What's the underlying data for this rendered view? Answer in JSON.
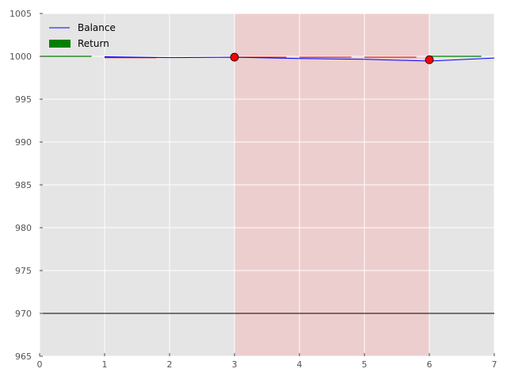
{
  "chart_data": {
    "type": "line",
    "title": "",
    "xlabel": "",
    "ylabel": "",
    "xlim": [
      0,
      7
    ],
    "ylim": [
      965,
      1005
    ],
    "grid": true,
    "legend_position": "top-left",
    "x_ticks": [
      "0",
      "1",
      "2",
      "3",
      "4",
      "5",
      "6",
      "7"
    ],
    "y_ticks": [
      "965",
      "970",
      "975",
      "980",
      "985",
      "990",
      "995",
      "1000",
      "1005"
    ],
    "legend": [
      {
        "label": "Balance",
        "kind": "line",
        "color": "#0000ff"
      },
      {
        "label": "Return",
        "kind": "patch",
        "color": "#008000"
      }
    ],
    "series": [
      {
        "name": "Balance",
        "color": "#0000ff",
        "x": [
          1,
          2,
          3,
          4,
          5,
          6,
          7
        ],
        "y": [
          999.95,
          999.85,
          999.9,
          999.75,
          999.65,
          999.45,
          999.8
        ]
      }
    ],
    "return_segments": [
      {
        "x0": 0.0,
        "x1": 0.8,
        "y": 1000.0,
        "color": "#008000"
      },
      {
        "x0": 1.0,
        "x1": 1.8,
        "y": 999.85,
        "color": "#dd0000"
      },
      {
        "x0": 3.0,
        "x1": 3.8,
        "y": 999.9,
        "color": "#dd0000"
      },
      {
        "x0": 4.0,
        "x1": 4.8,
        "y": 999.9,
        "color": "#dd0000"
      },
      {
        "x0": 5.0,
        "x1": 5.8,
        "y": 999.9,
        "color": "#dd0000"
      },
      {
        "x0": 6.0,
        "x1": 6.8,
        "y": 1000.0,
        "color": "#008000"
      }
    ],
    "markers": [
      {
        "x": 3,
        "y": 999.9,
        "color": "#ff0000"
      },
      {
        "x": 6,
        "y": 999.6,
        "color": "#ff0000"
      }
    ],
    "shaded_region": {
      "x0": 3,
      "x1": 6,
      "color": "#ff9999"
    },
    "hline": {
      "y": 970,
      "color": "#000000"
    },
    "colors": {
      "background": "#e5e5e5",
      "grid": "#ffffff",
      "tick_label": "#555555"
    }
  }
}
